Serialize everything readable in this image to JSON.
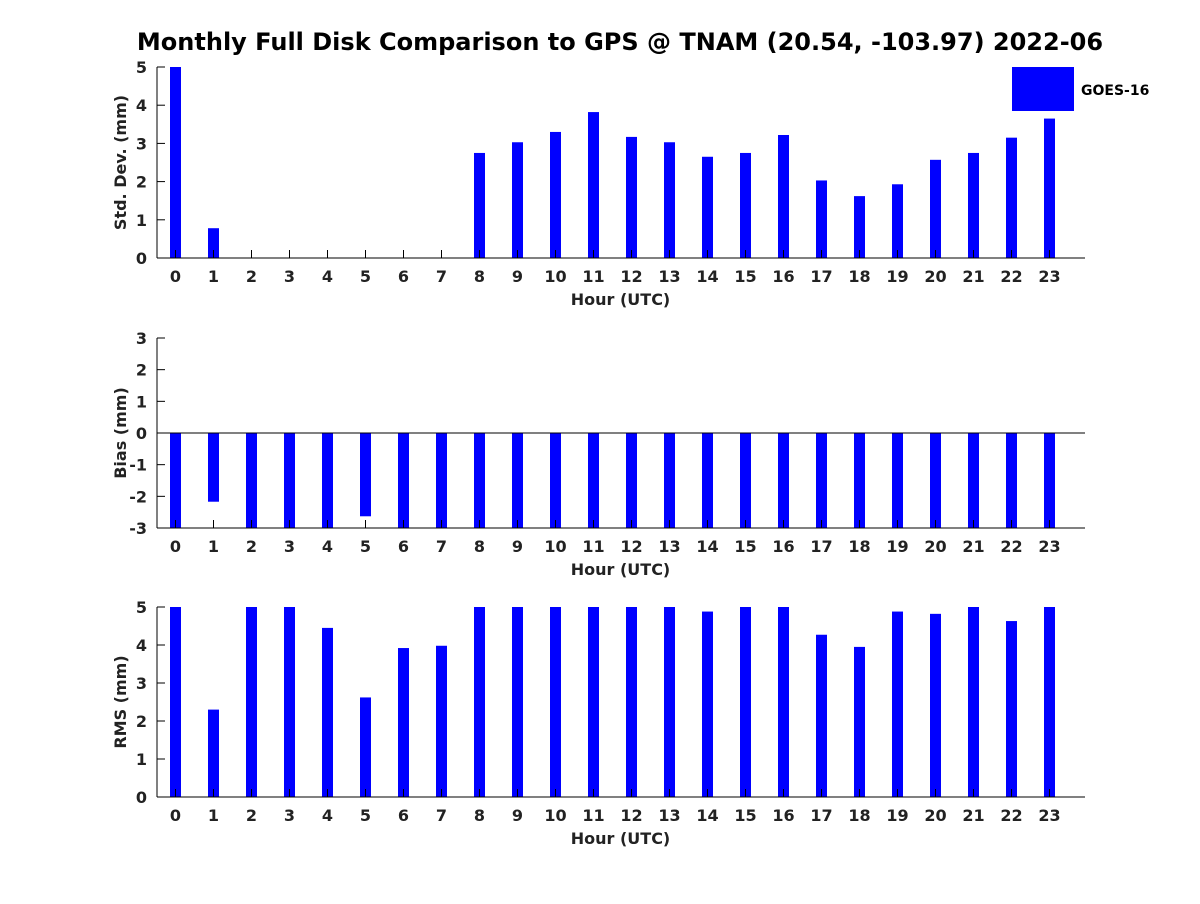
{
  "chart_data": {
    "title": "Monthly Full Disk Comparison to GPS @ TNAM (20.54, -103.97) 2022-06",
    "colors": {
      "bar": "#0000ff",
      "axis": "#000000",
      "text": "#222222"
    },
    "legend": {
      "position": "top-right",
      "label": "GOES-16"
    },
    "panels": [
      {
        "type": "bar",
        "xlabel": "Hour (UTC)",
        "ylabel": "Std. Dev. (mm)",
        "ylim": [
          0,
          5
        ],
        "yticks": [
          "0",
          "1",
          "2",
          "3",
          "4",
          "5"
        ],
        "categories": [
          "0",
          "1",
          "2",
          "3",
          "4",
          "5",
          "6",
          "7",
          "8",
          "9",
          "10",
          "11",
          "12",
          "13",
          "14",
          "15",
          "16",
          "17",
          "18",
          "19",
          "20",
          "21",
          "22",
          "23"
        ],
        "series": [
          {
            "name": "GOES-16",
            "values": [
              5.0,
              0.78,
              0,
              0,
              0,
              0,
              0,
              0,
              2.75,
              3.03,
              3.3,
              3.82,
              3.17,
              3.03,
              2.65,
              2.75,
              3.22,
              2.03,
              1.62,
              1.93,
              2.57,
              2.75,
              3.15,
              3.65
            ]
          }
        ],
        "show_legend": true
      },
      {
        "type": "bar",
        "xlabel": "Hour (UTC)",
        "ylabel": "Bias (mm)",
        "ylim": [
          -3,
          3
        ],
        "yticks": [
          "-3",
          "-2",
          "-1",
          "0",
          "1",
          "2",
          "3"
        ],
        "categories": [
          "0",
          "1",
          "2",
          "3",
          "4",
          "5",
          "6",
          "7",
          "8",
          "9",
          "10",
          "11",
          "12",
          "13",
          "14",
          "15",
          "16",
          "17",
          "18",
          "19",
          "20",
          "21",
          "22",
          "23"
        ],
        "series": [
          {
            "name": "GOES-16",
            "values": [
              -3,
              -2.17,
              -3,
              -3,
              -3,
              -2.63,
              -3,
              -3,
              -3,
              -3,
              -3,
              -3,
              -3,
              -3,
              -3,
              -3,
              -3,
              -3,
              -3,
              -3,
              -3,
              -3,
              -3,
              -3
            ]
          }
        ],
        "show_legend": false
      },
      {
        "type": "bar",
        "xlabel": "Hour (UTC)",
        "ylabel": "RMS (mm)",
        "ylim": [
          0,
          5
        ],
        "yticks": [
          "0",
          "1",
          "2",
          "3",
          "4",
          "5"
        ],
        "categories": [
          "0",
          "1",
          "2",
          "3",
          "4",
          "5",
          "6",
          "7",
          "8",
          "9",
          "10",
          "11",
          "12",
          "13",
          "14",
          "15",
          "16",
          "17",
          "18",
          "19",
          "20",
          "21",
          "22",
          "23"
        ],
        "series": [
          {
            "name": "GOES-16",
            "values": [
              5.0,
              2.3,
              5.0,
              5.0,
              4.45,
              2.62,
              3.92,
              3.98,
              5.0,
              5.0,
              5.0,
              5.0,
              5.0,
              5.0,
              4.88,
              5.0,
              5.0,
              4.27,
              3.95,
              4.88,
              4.82,
              5.0,
              4.63,
              5.0
            ]
          }
        ],
        "show_legend": false
      }
    ]
  }
}
